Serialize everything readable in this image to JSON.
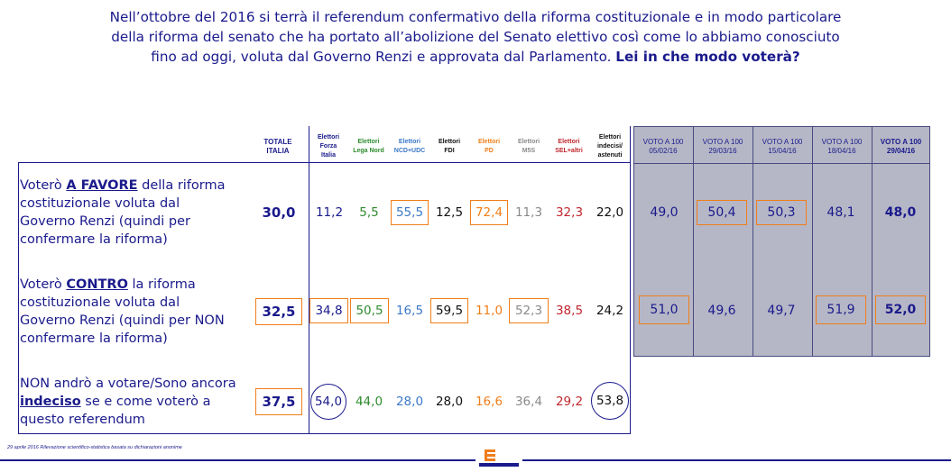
{
  "title": {
    "line1": "Nell’ottobre del 2016 si terrà il referendum confermativo della riforma costituzionale e in modo particolare",
    "line2": "della riforma del senato che ha portato all’abolizione del Senato elettivo così come lo abbiamo conosciuto",
    "line3": "fino ad oggi, voluta dal Governo Renzi e approvata dal Parlamento.",
    "question": "Lei in che modo voterà?"
  },
  "colors": {
    "navy": "#1a1a8c",
    "orange": "#f07e1a",
    "panel": "#b6b7c6",
    "forza_italia": "#1a1a8c",
    "lega_nord": "#2e8b2e",
    "ncd_udc": "#3a78c8",
    "fdi": "#111111",
    "pd": "#f07e1a",
    "m5s": "#8a8a8a",
    "sel": "#c0272d",
    "indecisi": "#111111"
  },
  "headers": {
    "totale": [
      "TOTALE",
      "ITALIA"
    ],
    "parties": [
      {
        "l1": "Elettori",
        "l2": "Forza",
        "l3": "Italia"
      },
      {
        "l1": "Elettori",
        "l2": "Lega Nord",
        "l3": ""
      },
      {
        "l1": "Elettori",
        "l2": "NCD+UDC",
        "l3": ""
      },
      {
        "l1": "Elettori",
        "l2": "FDI",
        "l3": ""
      },
      {
        "l1": "Elettori",
        "l2": "PD",
        "l3": ""
      },
      {
        "l1": "Elettori",
        "l2": "M5S",
        "l3": ""
      },
      {
        "l1": "Elettori",
        "l2": "SEL+altri",
        "l3": ""
      },
      {
        "l1": "Elettori",
        "l2": "indecisi/",
        "l3": "astenuti"
      }
    ],
    "voto": [
      {
        "l1": "VOTO A 100",
        "l2": "05/02/16"
      },
      {
        "l1": "VOTO A 100",
        "l2": "29/03/16"
      },
      {
        "l1": "VOTO A 100",
        "l2": "15/04/16"
      },
      {
        "l1": "VOTO A 100",
        "l2": "18/04/16"
      },
      {
        "l1": "VOTO A 100",
        "l2": "29/04/16"
      }
    ]
  },
  "rows": [
    {
      "label_a": "Voterò ",
      "label_b": "A FAVORE",
      "label_c": " della riforma costituzionale voluta dal Governo Renzi (quindi per confermare la riforma)",
      "totale": "30,0",
      "parties": [
        "11,2",
        "5,5",
        "55,5",
        "12,5",
        "72,4",
        "11,3",
        "32,3",
        "22,0"
      ],
      "voto": [
        "49,0",
        "50,4",
        "50,3",
        "48,1",
        "48,0"
      ]
    },
    {
      "label_a": "Voterò ",
      "label_b": "CONTRO",
      "label_c": " la riforma costituzionale voluta dal Governo Renzi (quindi per NON confermare la riforma)",
      "totale": "32,5",
      "parties": [
        "34,8",
        "50,5",
        "16,5",
        "59,5",
        "11,0",
        "52,3",
        "38,5",
        "24,2"
      ],
      "voto": [
        "51,0",
        "49,6",
        "49,7",
        "51,9",
        "52,0"
      ]
    },
    {
      "label_a": "NON andrò a votare/Sono ancora ",
      "label_b": "indeciso",
      "label_c": " se e come voterò a questo referendum",
      "totale": "37,5",
      "parties": [
        "54,0",
        "44,0",
        "28,0",
        "28,0",
        "16,6",
        "36,4",
        "29,2",
        "53,8"
      ],
      "voto": []
    }
  ],
  "footnote": "29 aprile 2016 Rilevazione scientifico-statistica basata su dichiarazioni anonime",
  "logo_text": "EUROMEDIA RESEARCH"
}
